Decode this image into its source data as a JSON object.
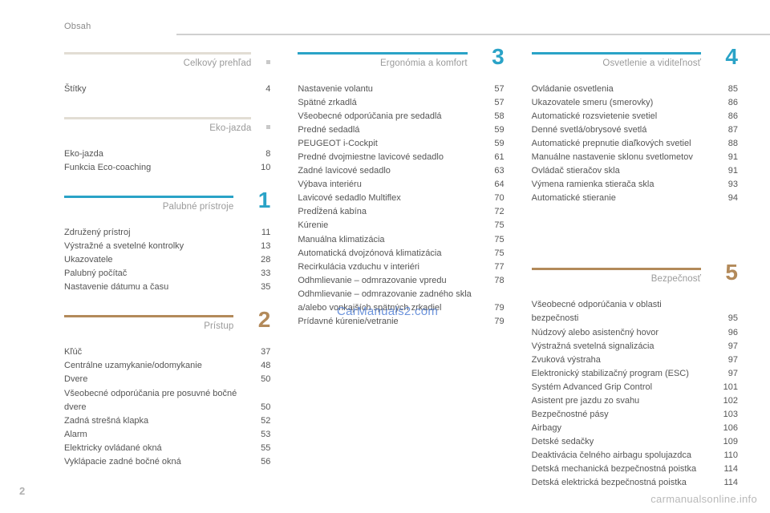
{
  "header": {
    "label": "Obsah"
  },
  "page_number": "2",
  "footer_link": "carmanualsonline.info",
  "watermark": "CarManuals2.com",
  "colors": {
    "header_rule": "#d0d0d0",
    "text": "#555555",
    "muted": "#9a9a9a",
    "page_num": "#b0b0b0",
    "footer": "#b9b9b9",
    "watermark": "#3b6fcf",
    "intro_bullet": "#c9c9c9",
    "intro_rule": "#e2ddd4",
    "num1": "#2aa3c7",
    "num2": "#b38a5a",
    "num3": "#2aa3c7",
    "num4": "#2aa3c7",
    "num5": "#b38a5a"
  },
  "columns": [
    {
      "sections": [
        {
          "kind": "intro",
          "title": "Celkový prehľad",
          "items": [
            {
              "label": "Štítky",
              "page": "4"
            }
          ]
        },
        {
          "kind": "intro",
          "title": "Eko-jazda",
          "items": [
            {
              "label": "Eko-jazda",
              "page": "8"
            },
            {
              "label": "Funkcia Eco-coaching",
              "page": "10"
            }
          ]
        },
        {
          "kind": "chapter",
          "title": "Palubné prístroje",
          "number": "1",
          "number_color_key": "num1",
          "items": [
            {
              "label": "Združený prístroj",
              "page": "11"
            },
            {
              "label": "Výstražné a svetelné kontrolky",
              "page": "13"
            },
            {
              "label": "Ukazovatele",
              "page": "28"
            },
            {
              "label": "Palubný počítač",
              "page": "33"
            },
            {
              "label": "Nastavenie dátumu a času",
              "page": "35"
            }
          ]
        },
        {
          "kind": "chapter",
          "title": "Prístup",
          "number": "2",
          "number_color_key": "num2",
          "items": [
            {
              "label": "Kľúč",
              "page": "37"
            },
            {
              "label": "Centrálne uzamykanie/odomykanie",
              "page": "48"
            },
            {
              "label": "Dvere",
              "page": "50"
            },
            {
              "label": "Všeobecné odporúčania pre posuvné bočné dvere",
              "page": "50"
            },
            {
              "label": "Zadná strešná klapka",
              "page": "52"
            },
            {
              "label": "Alarm",
              "page": "53"
            },
            {
              "label": "Elektricky ovládané okná",
              "page": "55"
            },
            {
              "label": "Vyklápacie zadné bočné okná",
              "page": "56"
            }
          ]
        }
      ]
    },
    {
      "sections": [
        {
          "kind": "chapter",
          "title": "Ergonómia a komfort",
          "number": "3",
          "number_color_key": "num3",
          "items": [
            {
              "label": "Nastavenie volantu",
              "page": "57"
            },
            {
              "label": "Spätné zrkadlá",
              "page": "57"
            },
            {
              "label": "Všeobecné odporúčania pre sedadlá",
              "page": "58"
            },
            {
              "label": "Predné sedadlá",
              "page": "59"
            },
            {
              "label": "PEUGEOT i-Cockpit",
              "page": "59"
            },
            {
              "label": "Predné dvojmiestne lavicové sedadlo",
              "page": "61"
            },
            {
              "label": "Zadné lavicové sedadlo",
              "page": "63"
            },
            {
              "label": "Výbava interiéru",
              "page": "64"
            },
            {
              "label": "Lavicové sedadlo Multiflex",
              "page": "70"
            },
            {
              "label": "Predĺžená kabína",
              "page": "72"
            },
            {
              "label": "Kúrenie",
              "page": "75"
            },
            {
              "label": "Manuálna klimatizácia",
              "page": "75"
            },
            {
              "label": "Automatická dvojzónová klimatizácia",
              "page": "75"
            },
            {
              "label": "Recirkulácia vzduchu v interiéri",
              "page": "77"
            },
            {
              "label": "Odhmlievanie – odmrazovanie vpredu",
              "page": "78"
            },
            {
              "label": "Odhmlievanie – odmrazovanie zadného skla a/alebo vonkajších spätných zrkadiel",
              "page": "79"
            },
            {
              "label": "Prídavné kúrenie/vetranie",
              "page": "79"
            }
          ]
        }
      ]
    },
    {
      "sections": [
        {
          "kind": "chapter",
          "title": "Osvetlenie a viditeľnosť",
          "number": "4",
          "number_color_key": "num4",
          "items": [
            {
              "label": "Ovládanie osvetlenia",
              "page": "85"
            },
            {
              "label": "Ukazovatele smeru (smerovky)",
              "page": "86"
            },
            {
              "label": "Automatické rozsvietenie svetiel",
              "page": "86"
            },
            {
              "label": "Denné svetlá/obrysové svetlá",
              "page": "87"
            },
            {
              "label": "Automatické prepnutie diaľkových svetiel",
              "page": "88"
            },
            {
              "label": "Manuálne nastavenie sklonu svetlometov",
              "page": "91"
            },
            {
              "label": "Ovládač stieračov skla",
              "page": "91"
            },
            {
              "label": "Výmena ramienka stierača skla",
              "page": "93"
            },
            {
              "label": "Automatické stieranie",
              "page": "94"
            }
          ]
        },
        {
          "kind": "chapter",
          "title": "Bezpečnosť",
          "number": "5",
          "number_color_key": "num5",
          "extra_top_margin": true,
          "items": [
            {
              "label": "Všeobecné odporúčania v oblasti bezpečnosti",
              "page": "95"
            },
            {
              "label": "Núdzový alebo asistenčný hovor",
              "page": "96"
            },
            {
              "label": "Výstražná svetelná signalizácia",
              "page": "97"
            },
            {
              "label": "Zvuková výstraha",
              "page": "97"
            },
            {
              "label": "Elektronický stabilizačný program (ESC)",
              "page": "97"
            },
            {
              "label": "Systém Advanced Grip Control",
              "page": "101"
            },
            {
              "label": "Asistent pre jazdu zo svahu",
              "page": "102"
            },
            {
              "label": "Bezpečnostné pásy",
              "page": "103"
            },
            {
              "label": "Airbagy",
              "page": "106"
            },
            {
              "label": "Detské sedačky",
              "page": "109"
            },
            {
              "label": "Deaktivácia čelného airbagu spolujazdca",
              "page": "110"
            },
            {
              "label": "Detská mechanická bezpečnostná poistka",
              "page": "114"
            },
            {
              "label": "Detská elektrická bezpečnostná poistka",
              "page": "114"
            }
          ]
        }
      ]
    }
  ]
}
